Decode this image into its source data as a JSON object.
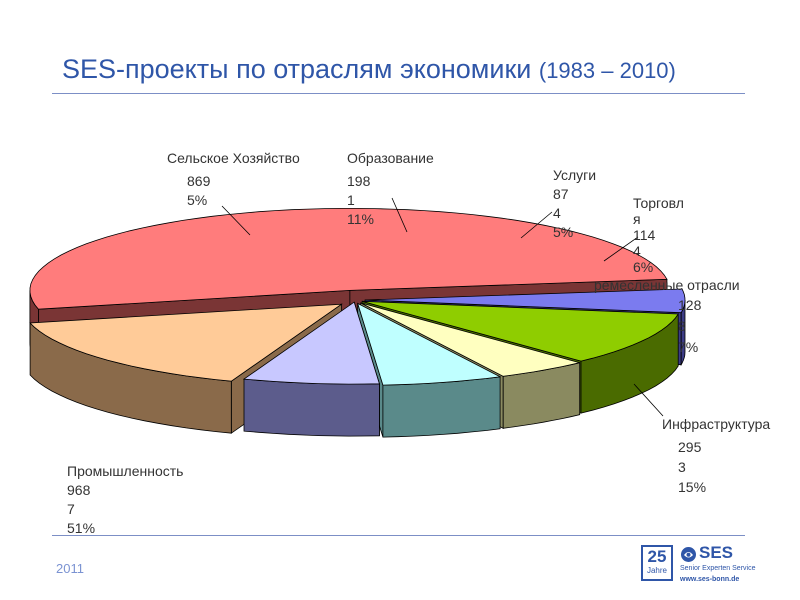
{
  "header": {
    "title": "SES-проекты по отраслям экономики",
    "title_years": "(1983 – 2010)"
  },
  "footer": {
    "year": "2011",
    "logo": {
      "badge_number": "25",
      "badge_word": "Jahre",
      "name": "SES",
      "tagline": "Senior Experten Service",
      "url": "www.ses-bonn.de"
    }
  },
  "colors": {
    "accent": "#2f56a8"
  },
  "chart_data": {
    "type": "pie",
    "three_d": true,
    "exploded": true,
    "legend": "none",
    "slices": [
      {
        "name": "Промышленность",
        "label_lines": [
          "Промышленность",
          "968",
          "7",
          "51%"
        ],
        "value": 9687,
        "percent": 51,
        "top_color": "#ff7c7c",
        "side_color": "#7a3535"
      },
      {
        "name": "Сельское Хозяйство",
        "label_lines": [
          "Сельское Хозяйство",
          "869",
          "5%"
        ],
        "value": 869,
        "percent": 5,
        "top_color": "#7b7bef",
        "side_color": "#3c3c86"
      },
      {
        "name": "Образование",
        "label_lines": [
          "Образование",
          "198",
          "1",
          "11%"
        ],
        "value": 1981,
        "percent": 11,
        "top_color": "#8fcd00",
        "side_color": "#4a6b00"
      },
      {
        "name": "Услуги",
        "label_lines": [
          "Услуги",
          "87",
          "4",
          "5%"
        ],
        "value": 874,
        "percent": 5,
        "top_color": "#ffffc0",
        "side_color": "#8a8a60"
      },
      {
        "name": "Торговля",
        "label_lines": [
          "Торговл",
          "я",
          "114",
          "4",
          "6%"
        ],
        "value": 1144,
        "percent": 6,
        "top_color": "#bfffff",
        "side_color": "#5a8a8a"
      },
      {
        "name": "ремесленные отрасли",
        "label_lines": [
          "ремесленные отрасли",
          "128",
          "8",
          "7%"
        ],
        "value": 1288,
        "percent": 7,
        "top_color": "#c8c8ff",
        "side_color": "#5c5c8c"
      },
      {
        "name": "Инфраструктура",
        "label_lines": [
          "Инфраструктура",
          "295",
          "3",
          "15%"
        ],
        "value": 2953,
        "percent": 15,
        "top_color": "#ffcb98",
        "side_color": "#8a6a4a"
      }
    ]
  }
}
